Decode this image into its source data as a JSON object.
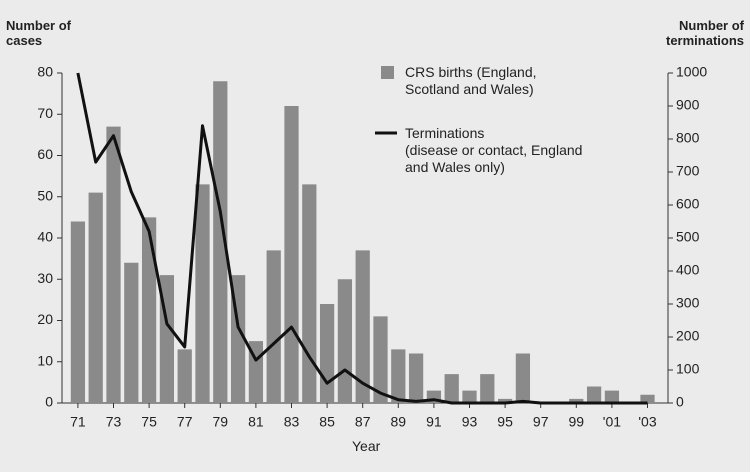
{
  "chart_data": {
    "type": "bar",
    "ylabel": "Number of\ncases",
    "y2label": "Number of\nterminations",
    "xlabel": "Year",
    "categories": [
      "71",
      null,
      "73",
      null,
      "75",
      null,
      "77",
      null,
      "79",
      null,
      "81",
      null,
      "83",
      null,
      "85",
      null,
      "87",
      null,
      "89",
      null,
      "91",
      null,
      "93",
      null,
      "95",
      null,
      "97",
      null,
      "99",
      null,
      "'01",
      null,
      "'03"
    ],
    "series": [
      {
        "name": "CRS births (England,\nScotland and Wales)",
        "type": "bar",
        "color": "#8a8a8a",
        "values": [
          44,
          51,
          67,
          34,
          45,
          31,
          13,
          53,
          78,
          31,
          15,
          37,
          72,
          53,
          24,
          30,
          37,
          21,
          13,
          12,
          3,
          7,
          3,
          7,
          1,
          12,
          0,
          0,
          1,
          4,
          3,
          0,
          2
        ]
      },
      {
        "name": "Terminations\n(disease or contact, England\nand Wales only)",
        "type": "line",
        "color": "#111111",
        "axis": "y2",
        "values": [
          1000,
          730,
          810,
          640,
          520,
          240,
          170,
          840,
          580,
          230,
          130,
          180,
          230,
          140,
          60,
          100,
          60,
          30,
          10,
          5,
          10,
          0,
          0,
          0,
          0,
          5,
          0,
          0,
          0,
          0,
          0,
          0,
          0
        ]
      }
    ],
    "ylim": [
      0,
      80
    ],
    "yticks": [
      0,
      10,
      20,
      30,
      40,
      50,
      60,
      70,
      80
    ],
    "y2lim": [
      0,
      1000
    ],
    "y2ticks": [
      0,
      100,
      200,
      300,
      400,
      500,
      600,
      700,
      800,
      900,
      1000
    ]
  }
}
